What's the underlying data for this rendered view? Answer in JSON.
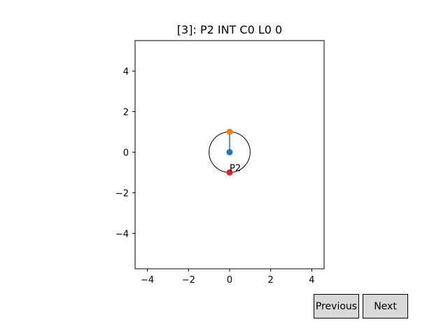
{
  "chart_data": {
    "type": "scatter",
    "title": "[3]: P2 INT C0 L0 0",
    "xlabel": "",
    "ylabel": "",
    "xlim": [
      -4.6,
      4.6
    ],
    "ylim": [
      -5.75,
      5.5
    ],
    "xticks": [
      -4,
      -2,
      0,
      2,
      4
    ],
    "xtick_labels": [
      "−4",
      "−2",
      "0",
      "2",
      "4"
    ],
    "yticks": [
      -4,
      -2,
      0,
      2,
      4
    ],
    "ytick_labels": [
      "−4",
      "−2",
      "0",
      "2",
      "4"
    ],
    "grid": false,
    "circle": {
      "center": [
        0,
        0
      ],
      "radius": 1,
      "color": "#000000"
    },
    "segment": {
      "from": [
        0,
        0
      ],
      "to": [
        0,
        1
      ],
      "color": "#1f77b4"
    },
    "points": [
      {
        "x": 0,
        "y": 0,
        "color": "#1f77b4"
      },
      {
        "x": 0,
        "y": 1,
        "color": "#ff7f0e"
      },
      {
        "x": 0,
        "y": -1,
        "color": "#d62728"
      }
    ],
    "annotation": {
      "text": "P2",
      "x": 0,
      "y": -0.8
    }
  },
  "buttons": {
    "previous": "Previous",
    "next": "Next"
  }
}
